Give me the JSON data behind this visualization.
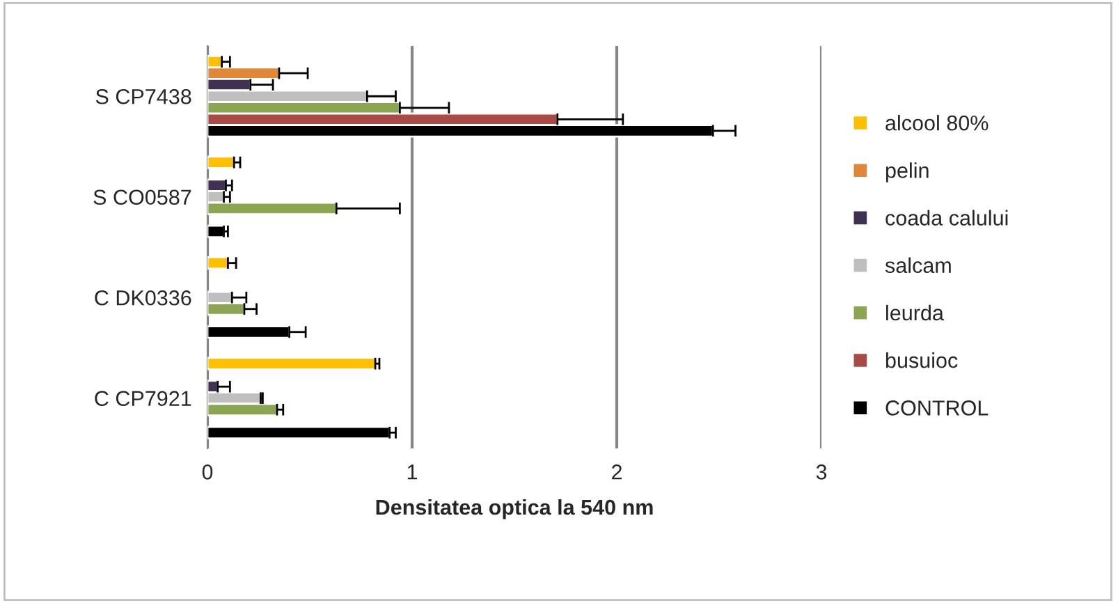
{
  "chart_data": {
    "type": "bar",
    "orientation": "horizontal",
    "xlabel": "Densitatea optica la 540 nm",
    "categories": [
      "S CP7438",
      "S CO0587",
      "C DK0336",
      "C CP7921"
    ],
    "series": [
      {
        "name": "alcool 80%",
        "color": "#ffc000",
        "values": [
          0.07,
          0.13,
          0.1,
          0.82
        ],
        "errors": [
          0.04,
          0.03,
          0.04,
          0.02
        ]
      },
      {
        "name": "pelin",
        "color": "#e0873a",
        "values": [
          0.35,
          null,
          null,
          null
        ],
        "errors": [
          0.14,
          null,
          null,
          null
        ]
      },
      {
        "name": "coada calului",
        "color": "#403152",
        "values": [
          0.21,
          0.09,
          null,
          0.05
        ],
        "errors": [
          0.11,
          0.03,
          null,
          0.06
        ]
      },
      {
        "name": "salcam",
        "color": "#bfbfbf",
        "values": [
          0.78,
          0.08,
          0.12,
          0.26
        ],
        "errors": [
          0.14,
          0.03,
          0.07,
          0.01
        ]
      },
      {
        "name": "leurda",
        "color": "#8ca552",
        "values": [
          0.94,
          0.63,
          0.18,
          0.34
        ],
        "errors": [
          0.24,
          0.31,
          0.06,
          0.03
        ]
      },
      {
        "name": "busuioc",
        "color": "#a84a46",
        "values": [
          1.71,
          null,
          null,
          null
        ],
        "errors": [
          0.32,
          null,
          null,
          null
        ]
      },
      {
        "name": "CONTROL",
        "color": "#000000",
        "values": [
          2.47,
          0.08,
          0.4,
          0.89
        ],
        "errors": [
          0.11,
          0.02,
          0.08,
          0.03
        ]
      }
    ],
    "xlim": [
      0,
      3
    ],
    "xticks": [
      0,
      1,
      2,
      3
    ],
    "grid": "x",
    "legend": "right"
  }
}
